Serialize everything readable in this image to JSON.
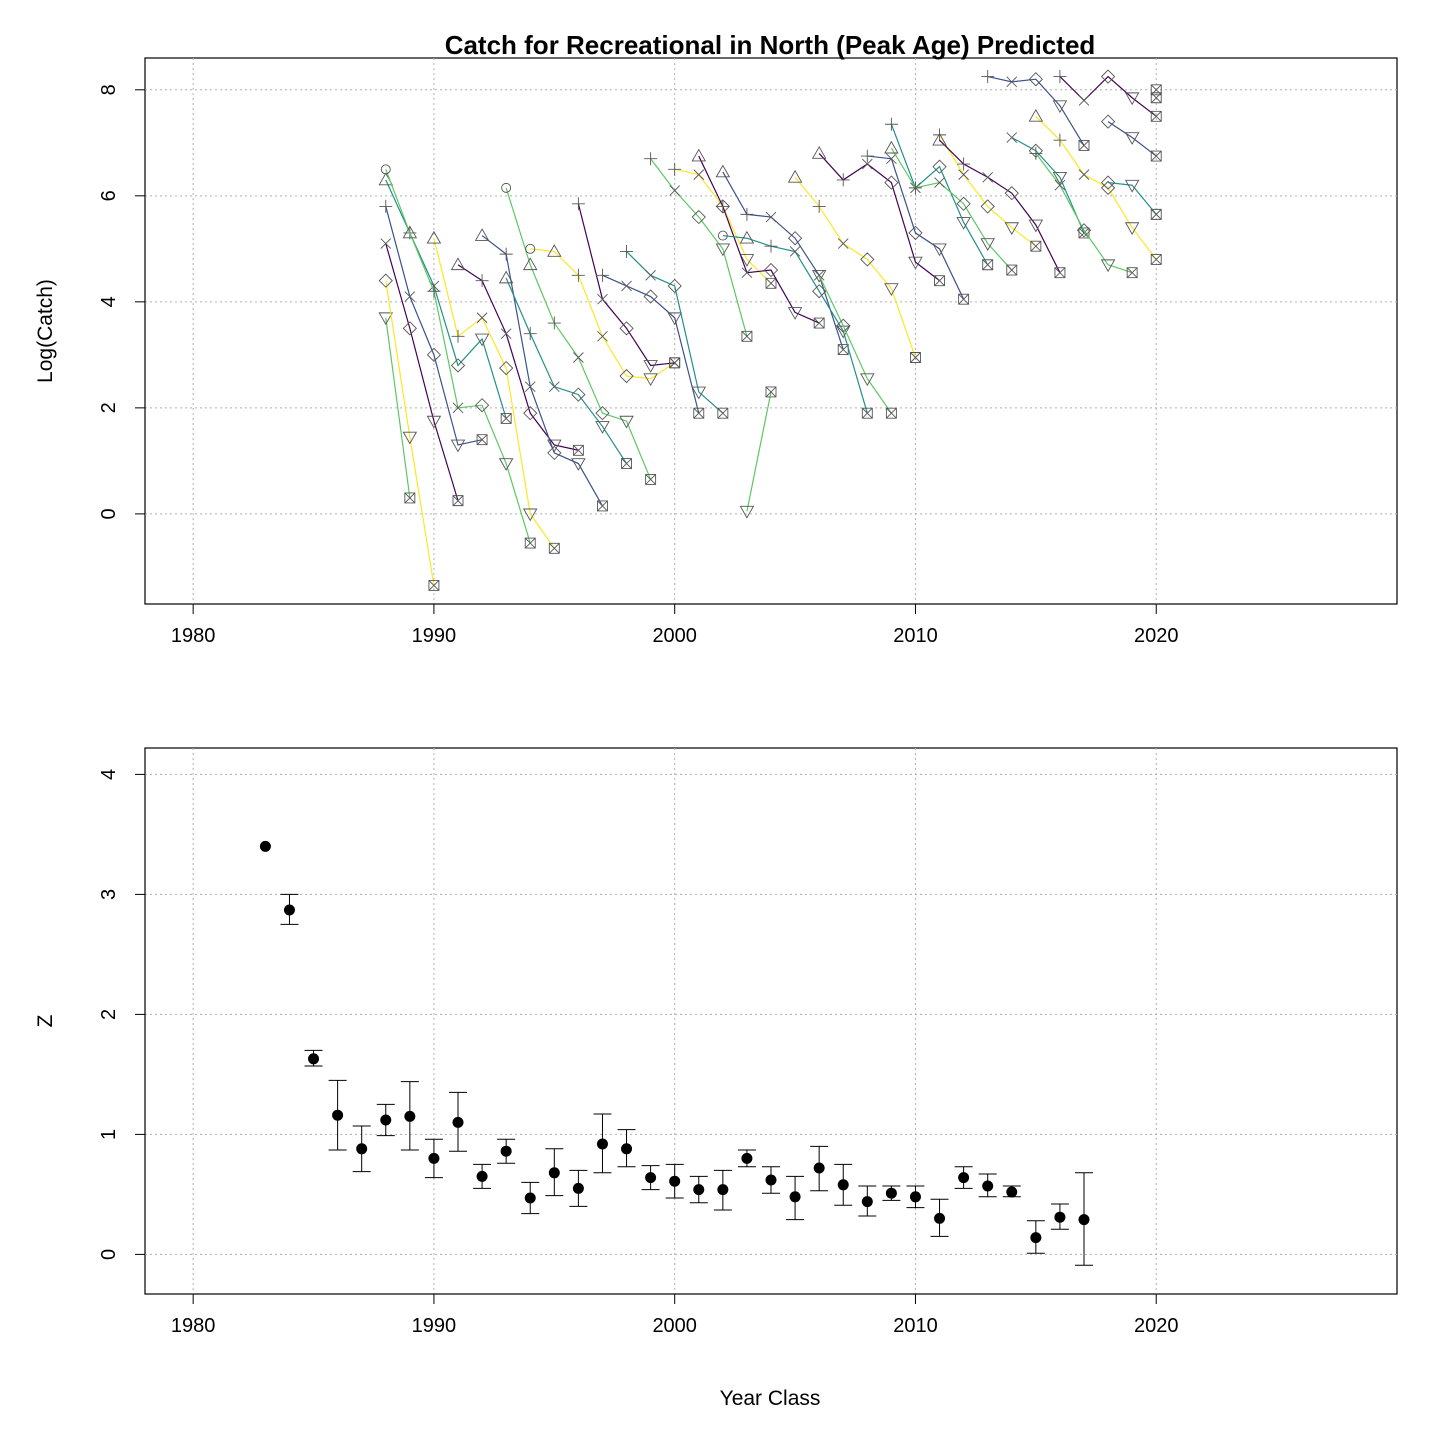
{
  "chart_data": [
    {
      "type": "line",
      "title": "Catch for Recreational in North (Peak Age) Predicted",
      "xlabel": "",
      "ylabel": "Log(Catch)",
      "xlim": [
        1978,
        2030
      ],
      "ylim": [
        -1.7,
        8.6
      ],
      "xticks": [
        1980,
        1990,
        2000,
        2010,
        2020
      ],
      "yticks": [
        0,
        2,
        4,
        6,
        8
      ],
      "grid": true,
      "legend": "none",
      "palette": [
        "#440154",
        "#3b528b",
        "#21908c",
        "#5dc863",
        "#fde725"
      ],
      "markers_by_age": [
        "circle",
        "triangle",
        "plus",
        "cross",
        "diamond",
        "triangle-down",
        "boxed-x"
      ],
      "series": [
        {
          "color": "#440154",
          "x": [
            1988,
            1989,
            1990,
            1991
          ],
          "y": [
            5.1,
            3.5,
            1.75,
            0.25
          ]
        },
        {
          "color": "#3b528b",
          "x": [
            1988,
            1989,
            1990,
            1991,
            1992
          ],
          "y": [
            5.8,
            4.1,
            3.0,
            1.3,
            1.4
          ]
        },
        {
          "color": "#21908c",
          "x": [
            1988,
            1989,
            1990,
            1991,
            1992,
            1993
          ],
          "y": [
            6.3,
            5.3,
            4.3,
            2.8,
            3.3,
            1.8
          ]
        },
        {
          "color": "#5dc863",
          "x": [
            1988,
            1989,
            1990,
            1991,
            1992,
            1993,
            1994
          ],
          "y": [
            6.5,
            5.3,
            4.2,
            2.0,
            2.05,
            0.95,
            -0.55
          ]
        },
        {
          "color": "#5dc863",
          "x": [
            1988,
            1989
          ],
          "y": [
            3.7,
            0.3
          ]
        },
        {
          "color": "#fde725",
          "x": [
            1988,
            1989,
            1990
          ],
          "y": [
            4.4,
            1.45,
            -1.35
          ]
        },
        {
          "color": "#fde725",
          "x": [
            1990,
            1991,
            1992,
            1993,
            1994,
            1995
          ],
          "y": [
            5.2,
            3.35,
            3.7,
            2.75,
            0.0,
            -0.65
          ]
        },
        {
          "color": "#440154",
          "x": [
            1991,
            1992,
            1993,
            1994,
            1995,
            1996
          ],
          "y": [
            4.7,
            4.4,
            3.4,
            1.9,
            1.3,
            1.2
          ]
        },
        {
          "color": "#3b528b",
          "x": [
            1992,
            1993,
            1994,
            1995,
            1996,
            1997
          ],
          "y": [
            5.25,
            4.9,
            2.4,
            1.15,
            0.95,
            0.15
          ]
        },
        {
          "color": "#21908c",
          "x": [
            1993,
            1994,
            1995,
            1996,
            1997,
            1998
          ],
          "y": [
            4.45,
            3.4,
            2.4,
            2.25,
            1.65,
            0.95
          ]
        },
        {
          "color": "#5dc863",
          "x": [
            1993,
            1994,
            1995,
            1996,
            1997,
            1998,
            1999
          ],
          "y": [
            6.15,
            4.7,
            3.6,
            2.95,
            1.9,
            1.75,
            0.65
          ]
        },
        {
          "color": "#fde725",
          "x": [
            1994,
            1995,
            1996,
            1997,
            1998,
            1999,
            2000
          ],
          "y": [
            5.0,
            4.95,
            4.5,
            3.35,
            2.6,
            2.55,
            2.85
          ]
        },
        {
          "color": "#440154",
          "x": [
            1996,
            1997,
            1998,
            1999,
            2000
          ],
          "y": [
            5.85,
            4.05,
            3.5,
            2.8,
            2.85
          ]
        },
        {
          "color": "#3b528b",
          "x": [
            1997,
            1998,
            1999,
            2000,
            2001
          ],
          "y": [
            4.5,
            4.3,
            4.1,
            3.7,
            1.9
          ]
        },
        {
          "color": "#21908c",
          "x": [
            1998,
            1999,
            2000,
            2001,
            2002
          ],
          "y": [
            4.95,
            4.5,
            4.3,
            2.3,
            1.9
          ]
        },
        {
          "color": "#5dc863",
          "x": [
            1999,
            2000,
            2001,
            2002,
            2003
          ],
          "y": [
            6.7,
            6.1,
            5.6,
            5.0,
            3.35
          ]
        },
        {
          "color": "#fde725",
          "x": [
            2000,
            2001,
            2002,
            2003,
            2004
          ],
          "y": [
            6.5,
            6.4,
            5.8,
            4.8,
            4.35
          ]
        },
        {
          "color": "#440154",
          "x": [
            2001,
            2002,
            2003,
            2004,
            2005,
            2006
          ],
          "y": [
            6.75,
            5.8,
            4.55,
            4.6,
            3.8,
            3.6
          ]
        },
        {
          "color": "#3b528b",
          "x": [
            2002,
            2003,
            2004,
            2005,
            2006,
            2007
          ],
          "y": [
            6.45,
            5.65,
            5.6,
            5.2,
            4.5,
            3.1
          ]
        },
        {
          "color": "#21908c",
          "x": [
            2002,
            2003,
            2004,
            2005,
            2006,
            2007,
            2008
          ],
          "y": [
            5.25,
            5.2,
            5.05,
            4.95,
            4.2,
            3.45,
            1.9
          ]
        },
        {
          "color": "#5dc863",
          "x": [
            2003,
            2004
          ],
          "y": [
            0.05,
            2.3
          ]
        },
        {
          "color": "#5dc863",
          "x": [
            2006,
            2007,
            2008,
            2009
          ],
          "y": [
            4.5,
            3.55,
            2.55,
            1.9
          ]
        },
        {
          "color": "#fde725",
          "x": [
            2005,
            2006,
            2007,
            2008,
            2009,
            2010
          ],
          "y": [
            6.35,
            5.8,
            5.1,
            4.8,
            4.25,
            2.95
          ]
        },
        {
          "color": "#440154",
          "x": [
            2006,
            2007,
            2008,
            2009,
            2010,
            2011
          ],
          "y": [
            6.8,
            6.3,
            6.6,
            6.25,
            4.75,
            4.4
          ]
        },
        {
          "color": "#3b528b",
          "x": [
            2008,
            2009,
            2010,
            2011,
            2012
          ],
          "y": [
            6.75,
            6.7,
            5.3,
            5.0,
            4.05
          ]
        },
        {
          "color": "#21908c",
          "x": [
            2009,
            2010,
            2011,
            2012,
            2013
          ],
          "y": [
            7.35,
            6.15,
            6.55,
            5.5,
            4.7
          ]
        },
        {
          "color": "#5dc863",
          "x": [
            2009,
            2010,
            2011,
            2012,
            2013,
            2014
          ],
          "y": [
            6.9,
            6.15,
            6.25,
            5.85,
            5.1,
            4.6
          ]
        },
        {
          "color": "#fde725",
          "x": [
            2011,
            2012,
            2013,
            2014,
            2015
          ],
          "y": [
            7.15,
            6.4,
            5.8,
            5.4,
            5.05
          ]
        },
        {
          "color": "#440154",
          "x": [
            2011,
            2012,
            2013,
            2014,
            2015,
            2016
          ],
          "y": [
            7.05,
            6.6,
            6.35,
            6.05,
            5.45,
            4.55
          ]
        },
        {
          "color": "#3b528b",
          "x": [
            2013,
            2014,
            2015,
            2016,
            2017
          ],
          "y": [
            8.25,
            8.15,
            8.2,
            7.7,
            6.95
          ]
        },
        {
          "color": "#21908c",
          "x": [
            2014,
            2015,
            2016,
            2017
          ],
          "y": [
            7.1,
            6.85,
            6.35,
            5.3
          ]
        },
        {
          "color": "#5dc863",
          "x": [
            2015,
            2016,
            2017,
            2018,
            2019
          ],
          "y": [
            6.8,
            6.2,
            5.35,
            4.7,
            4.55
          ]
        },
        {
          "color": "#fde725",
          "x": [
            2015,
            2016,
            2017,
            2018,
            2019,
            2020
          ],
          "y": [
            7.5,
            7.05,
            6.4,
            6.15,
            5.4,
            4.8
          ]
        },
        {
          "color": "#440154",
          "x": [
            2016,
            2017,
            2018,
            2019,
            2020
          ],
          "y": [
            8.25,
            7.8,
            8.25,
            7.85,
            7.5
          ]
        },
        {
          "color": "#3b528b",
          "x": [
            2018,
            2019,
            2020
          ],
          "y": [
            7.4,
            7.1,
            6.75
          ]
        },
        {
          "color": "#21908c",
          "x": [
            2018,
            2019,
            2020
          ],
          "y": [
            6.25,
            6.2,
            5.65
          ]
        },
        {
          "color": "#5dc863",
          "x": [
            2020
          ],
          "y": [
            8.0
          ]
        },
        {
          "color": "#fde725",
          "x": [
            2020
          ],
          "y": [
            7.85
          ]
        }
      ]
    },
    {
      "type": "scatter",
      "title": "",
      "xlabel": "Year Class",
      "ylabel": "Z",
      "xlim": [
        1978,
        2030
      ],
      "ylim": [
        -0.33,
        4.22
      ],
      "xticks": [
        1980,
        1990,
        2000,
        2010,
        2020
      ],
      "yticks": [
        0,
        1,
        2,
        3,
        4
      ],
      "grid": true,
      "legend": "none",
      "x": [
        1983,
        1984,
        1985,
        1986,
        1987,
        1988,
        1989,
        1990,
        1991,
        1992,
        1993,
        1994,
        1995,
        1996,
        1997,
        1998,
        1999,
        2000,
        2001,
        2002,
        2003,
        2004,
        2005,
        2006,
        2007,
        2008,
        2009,
        2010,
        2011,
        2012,
        2013,
        2014,
        2015,
        2016,
        2017
      ],
      "y": [
        3.4,
        2.87,
        1.63,
        1.16,
        0.88,
        1.12,
        1.15,
        0.8,
        1.1,
        0.65,
        0.86,
        0.47,
        0.68,
        0.55,
        0.92,
        0.88,
        0.64,
        0.61,
        0.54,
        0.54,
        0.8,
        0.62,
        0.48,
        0.72,
        0.58,
        0.44,
        0.51,
        0.48,
        0.3,
        0.64,
        0.57,
        0.52,
        0.14,
        0.31,
        0.29
      ],
      "lower": [
        null,
        2.75,
        1.57,
        0.87,
        0.69,
        0.99,
        0.87,
        0.64,
        0.86,
        0.55,
        0.76,
        0.34,
        0.49,
        0.4,
        0.68,
        0.73,
        0.54,
        0.47,
        0.43,
        0.37,
        0.73,
        0.51,
        0.29,
        0.53,
        0.41,
        0.32,
        0.45,
        0.39,
        0.15,
        0.55,
        0.48,
        0.48,
        0.01,
        0.21,
        -0.09
      ],
      "upper": [
        null,
        3.0,
        1.7,
        1.45,
        1.07,
        1.25,
        1.44,
        0.96,
        1.35,
        0.75,
        0.96,
        0.6,
        0.88,
        0.7,
        1.17,
        1.04,
        0.74,
        0.75,
        0.65,
        0.7,
        0.87,
        0.73,
        0.65,
        0.9,
        0.75,
        0.57,
        0.57,
        0.57,
        0.46,
        0.73,
        0.67,
        0.57,
        0.28,
        0.42,
        0.68
      ]
    }
  ]
}
